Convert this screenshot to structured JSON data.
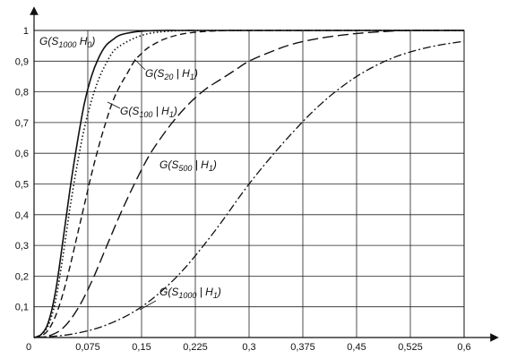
{
  "chart_data": {
    "type": "line",
    "title": "",
    "xlabel": "",
    "ylabel": "",
    "xlim": [
      0,
      0.6
    ],
    "ylim": [
      0,
      1
    ],
    "grid": true,
    "x_ticks": [
      "0",
      "0,075",
      "0,15",
      "0,225",
      "0,3",
      "0,375",
      "0,45",
      "0,525",
      "0,6"
    ],
    "y_ticks": [
      "0,1",
      "0,2",
      "0,3",
      "0,4",
      "0,5",
      "0,6",
      "0,7",
      "0,8",
      "0,9",
      "1"
    ],
    "series": [
      {
        "name": "G(S1000 | H0)",
        "label": {
          "pre": "G(S",
          "sub": "1000",
          "post": " H",
          "sub2": "0",
          "end": ")"
        },
        "style": "solid",
        "x": [
          0,
          0.01,
          0.02,
          0.03,
          0.04,
          0.05,
          0.06,
          0.07,
          0.08,
          0.09,
          0.1,
          0.11,
          0.12,
          0.14,
          0.16,
          0.18,
          0.2,
          0.22,
          0.6
        ],
        "y": [
          0,
          0.01,
          0.05,
          0.15,
          0.31,
          0.48,
          0.63,
          0.76,
          0.85,
          0.91,
          0.95,
          0.97,
          0.985,
          0.995,
          0.999,
          1,
          1,
          1,
          1
        ]
      },
      {
        "name": "G(S20 | H1)",
        "label": {
          "pre": "G(S",
          "sub": "20",
          "post": " | H",
          "sub2": "1",
          "end": ")"
        },
        "style": "dotted",
        "x": [
          0,
          0.01,
          0.02,
          0.03,
          0.04,
          0.05,
          0.06,
          0.07,
          0.08,
          0.09,
          0.1,
          0.11,
          0.12,
          0.14,
          0.16,
          0.18,
          0.2,
          0.22,
          0.25,
          0.6
        ],
        "y": [
          0,
          0.01,
          0.04,
          0.12,
          0.26,
          0.42,
          0.56,
          0.68,
          0.77,
          0.84,
          0.89,
          0.93,
          0.95,
          0.975,
          0.99,
          0.996,
          0.999,
          1,
          1,
          1
        ]
      },
      {
        "name": "G(S100 | H1)",
        "label": {
          "pre": "G(S",
          "sub": "100",
          "post": " | H",
          "sub2": "1",
          "end": ")"
        },
        "style": "dashed",
        "x": [
          0,
          0.01,
          0.02,
          0.03,
          0.04,
          0.05,
          0.06,
          0.07,
          0.08,
          0.09,
          0.1,
          0.11,
          0.12,
          0.13,
          0.14,
          0.15,
          0.16,
          0.18,
          0.2,
          0.22,
          0.24,
          0.26,
          0.28,
          0.3,
          0.6
        ],
        "y": [
          0,
          0.005,
          0.025,
          0.07,
          0.14,
          0.23,
          0.33,
          0.43,
          0.53,
          0.62,
          0.7,
          0.77,
          0.82,
          0.86,
          0.9,
          0.925,
          0.945,
          0.97,
          0.985,
          0.993,
          0.997,
          0.999,
          1,
          1,
          1
        ]
      },
      {
        "name": "G(S500 | H1)",
        "label": {
          "pre": "G(S",
          "sub": "500",
          "post": " | H",
          "sub2": "1",
          "end": ")"
        },
        "style": "longdash",
        "x": [
          0,
          0.02,
          0.04,
          0.06,
          0.08,
          0.1,
          0.12,
          0.14,
          0.16,
          0.18,
          0.2,
          0.22,
          0.24,
          0.26,
          0.28,
          0.3,
          0.33,
          0.36,
          0.4,
          0.45,
          0.5,
          0.525,
          0.6
        ],
        "y": [
          0,
          0.005,
          0.03,
          0.09,
          0.18,
          0.29,
          0.4,
          0.5,
          0.59,
          0.66,
          0.72,
          0.77,
          0.81,
          0.84,
          0.87,
          0.9,
          0.93,
          0.955,
          0.975,
          0.99,
          0.998,
          1,
          1
        ]
      },
      {
        "name": "G(S1000 | H1)",
        "label": {
          "pre": "G(S",
          "sub": "1000",
          "post": " | H",
          "sub2": "1",
          "end": ")"
        },
        "style": "dashdot",
        "x": [
          0,
          0.05,
          0.1,
          0.15,
          0.2,
          0.25,
          0.3,
          0.35,
          0.4,
          0.45,
          0.5,
          0.55,
          0.6
        ],
        "y": [
          0,
          0.01,
          0.04,
          0.1,
          0.2,
          0.34,
          0.5,
          0.64,
          0.76,
          0.85,
          0.91,
          0.945,
          0.965
        ]
      }
    ]
  }
}
